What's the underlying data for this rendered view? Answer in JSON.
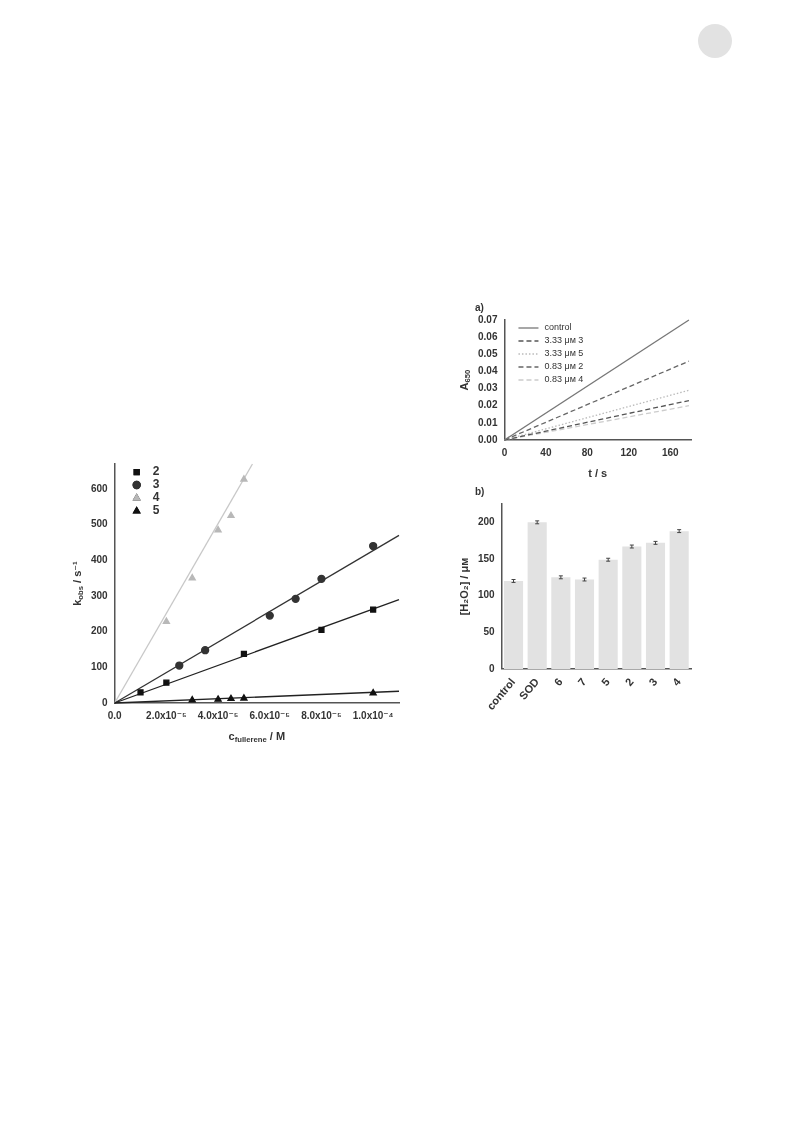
{
  "chart_data": [
    {
      "type": "scatter",
      "xlabel": "c$_{fullerene}$ / M",
      "ylabel": "k$_{obs}$ / s⁻¹",
      "xlim": [
        0,
        0.00011
      ],
      "xticks": [
        {
          "value": 0,
          "label": "0.0"
        },
        {
          "value": 2e-05,
          "label": "2.0x10⁻⁵"
        },
        {
          "value": 4e-05,
          "label": "4.0x10⁻⁵"
        },
        {
          "value": 6e-05,
          "label": "6.0x10⁻⁵"
        },
        {
          "value": 8e-05,
          "label": "8.0x10⁻⁵"
        },
        {
          "value": 0.0001,
          "label": "1.0x10⁻⁴"
        }
      ],
      "ylim": [
        0,
        670
      ],
      "yticks": [
        0,
        100,
        200,
        300,
        400,
        500,
        600
      ],
      "legend": "top left",
      "grid": false,
      "series": [
        {
          "name": "2",
          "color": "#111111",
          "marker": "square",
          "x": [
            1e-05,
            2e-05,
            5e-05,
            8e-05,
            0.0001
          ],
          "values": [
            30,
            57,
            138,
            205,
            262
          ]
        },
        {
          "name": "3",
          "color": "#333333",
          "marker": "circle",
          "x": [
            2.5e-05,
            3.5e-05,
            6e-05,
            7e-05,
            8e-05,
            0.0001
          ],
          "values": [
            105,
            148,
            245,
            292,
            348,
            440
          ]
        },
        {
          "name": "4",
          "color": "#b8b8b8",
          "marker": "triangle",
          "x": [
            2e-05,
            3e-05,
            4e-05,
            4.5e-05,
            5e-05
          ],
          "values": [
            228,
            350,
            485,
            525,
            627
          ]
        },
        {
          "name": "5",
          "color": "#111111",
          "marker": "triangle",
          "x": [
            3e-05,
            4e-05,
            4.5e-05,
            5e-05,
            0.0001
          ],
          "values": [
            8,
            10,
            12,
            13,
            28
          ]
        },
        {
          "type": "line",
          "color": "#222222",
          "marker": "none",
          "x": [
            0,
            0.00011
          ],
          "values": [
            0,
            290
          ]
        },
        {
          "type": "line",
          "color": "#333333",
          "marker": "none",
          "x": [
            0,
            0.00011
          ],
          "values": [
            0,
            470
          ]
        },
        {
          "type": "line",
          "color": "#c8c8c8",
          "marker": "none",
          "x": [
            0,
            5.33e-05
          ],
          "values": [
            0,
            670
          ]
        },
        {
          "type": "line",
          "color": "#222222",
          "marker": "none",
          "x": [
            0,
            0.00011
          ],
          "values": [
            0,
            33
          ]
        }
      ]
    },
    {
      "type": "line",
      "title": "a)",
      "xlabel": "t / s",
      "ylabel": "A$_{650}$",
      "xlim": [
        0,
        180
      ],
      "xticks": [
        0,
        40,
        80,
        120,
        160
      ],
      "ylim": [
        0,
        0.07
      ],
      "yticks": [
        {
          "value": 0,
          "label": "0.00"
        },
        0.01,
        0.02,
        0.03,
        0.04,
        0.05,
        0.06,
        0.07
      ],
      "legend": "top left",
      "grid": false,
      "marker": "none",
      "series": [
        {
          "name": "control",
          "color": "#777777",
          "line_style": "solid",
          "x": [
            0,
            178
          ],
          "values": [
            0,
            0.07
          ]
        },
        {
          "name": "3.33 μᴍ 3",
          "color": "#555555",
          "line_style": "dashed",
          "x": [
            0,
            178
          ],
          "values": [
            0,
            0.023
          ]
        },
        {
          "name": "3.33 μᴍ 5",
          "color": "#bbbbbb",
          "line_style": "dotted",
          "x": [
            0,
            178
          ],
          "values": [
            0,
            0.029
          ]
        },
        {
          "name": "0.83 μᴍ 2",
          "color": "#666666",
          "line_style": "dashed",
          "x": [
            0,
            178
          ],
          "values": [
            0,
            0.046
          ]
        },
        {
          "name": "0.83 μᴍ 4",
          "color": "#cccccc",
          "line_style": "dashed",
          "x": [
            0,
            178
          ],
          "values": [
            0,
            0.02
          ]
        }
      ]
    },
    {
      "type": "bar",
      "title": "b)",
      "ylabel": "[H₂O₂] / μᴍ",
      "categories": [
        "control",
        "SOD",
        "6",
        "7",
        "5",
        "2",
        "3",
        "4"
      ],
      "values": [
        120,
        200,
        125,
        122,
        149,
        167,
        172,
        188
      ],
      "errors": [
        2,
        2,
        2,
        2,
        2,
        2,
        2,
        2
      ],
      "color": "#e2e2e2",
      "ylim": [
        0,
        225
      ],
      "yticks": [
        0,
        50,
        100,
        150,
        200
      ],
      "grid": false
    }
  ]
}
